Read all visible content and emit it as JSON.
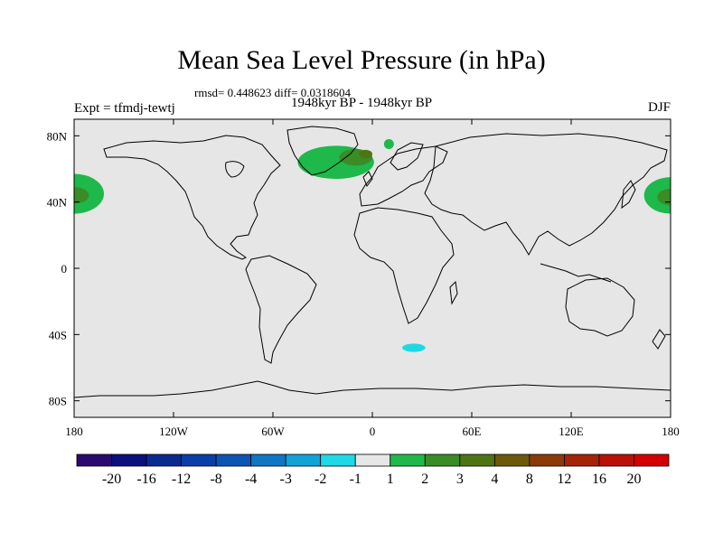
{
  "title": "Mean Sea Level Pressure (in hPa)",
  "stats": "rmsd= 0.448623 diff= 0.0318604",
  "period": "1948kyr BP - 1948kyr BP",
  "experiment": "Expt = tfmdj-tewtj",
  "season": "DJF",
  "chart_data": {
    "type": "heatmap",
    "projection": "cylindrical-equidistant",
    "xlim": [
      -180,
      180
    ],
    "ylim": [
      -90,
      90
    ],
    "x_ticks": [
      {
        "value": -180,
        "label": "180"
      },
      {
        "value": -120,
        "label": "120W"
      },
      {
        "value": -60,
        "label": "60W"
      },
      {
        "value": 0,
        "label": "0"
      },
      {
        "value": 60,
        "label": "60E"
      },
      {
        "value": 120,
        "label": "120E"
      },
      {
        "value": 180,
        "label": "180"
      }
    ],
    "y_ticks": [
      {
        "value": 80,
        "label": "80N"
      },
      {
        "value": 40,
        "label": "40N"
      },
      {
        "value": 0,
        "label": "0"
      },
      {
        "value": -40,
        "label": "40S"
      },
      {
        "value": -80,
        "label": "80S"
      }
    ],
    "background_color": "#e6e6e6",
    "colorbar": {
      "labels": [
        "-20",
        "-16",
        "-12",
        "-8",
        "-4",
        "-3",
        "-2",
        "-1",
        "1",
        "2",
        "3",
        "4",
        "8",
        "12",
        "16",
        "20"
      ],
      "colors": [
        "#2a0a6e",
        "#0c0f7e",
        "#0a2a90",
        "#0a3ea8",
        "#0d55b5",
        "#0f76c4",
        "#10a3d6",
        "#1fd8e6",
        "#e6e6e6",
        "#1fb84a",
        "#3a8c26",
        "#4f7415",
        "#6c5a0a",
        "#8b3a0a",
        "#a52308",
        "#bb1008",
        "#d40000"
      ]
    },
    "anomaly_regions": [
      {
        "name": "north-pacific-west",
        "level": "1 to 2",
        "color": "#1fb84a",
        "lon": -180,
        "lat": 45,
        "lon_halfwidth": 18,
        "lat_halfwidth": 12
      },
      {
        "name": "north-pacific-west-core",
        "level": "2 to 3",
        "color": "#3a8c26",
        "lon": -180,
        "lat": 44,
        "lon_halfwidth": 9,
        "lat_halfwidth": 5
      },
      {
        "name": "north-pacific-east",
        "level": "1 to 2",
        "color": "#1fb84a",
        "lon": 180,
        "lat": 44,
        "lon_halfwidth": 16,
        "lat_halfwidth": 11
      },
      {
        "name": "north-pacific-east-core",
        "level": "2 to 3",
        "color": "#3a8c26",
        "lon": 180,
        "lat": 43,
        "lon_halfwidth": 8,
        "lat_halfwidth": 5
      },
      {
        "name": "north-atlantic",
        "level": "1 to 2",
        "color": "#1fb84a",
        "lon": -22,
        "lat": 64,
        "lon_halfwidth": 23,
        "lat_halfwidth": 10
      },
      {
        "name": "north-atlantic-core",
        "level": "2 to 3",
        "color": "#3a8c26",
        "lon": -10,
        "lat": 67,
        "lon_halfwidth": 10,
        "lat_halfwidth": 5
      },
      {
        "name": "north-atlantic-peak",
        "level": "3 to 4",
        "color": "#4f7415",
        "lon": -4,
        "lat": 69,
        "lon_halfwidth": 4,
        "lat_halfwidth": 2.5
      },
      {
        "name": "arctic-patch",
        "level": "1 to 2",
        "color": "#1fb84a",
        "lon": 10,
        "lat": 75,
        "lon_halfwidth": 3,
        "lat_halfwidth": 3
      },
      {
        "name": "southern-ocean",
        "level": "-2 to -1",
        "color": "#1fd8e6",
        "lon": 25,
        "lat": -48,
        "lon_halfwidth": 7,
        "lat_halfwidth": 2.5
      }
    ]
  }
}
